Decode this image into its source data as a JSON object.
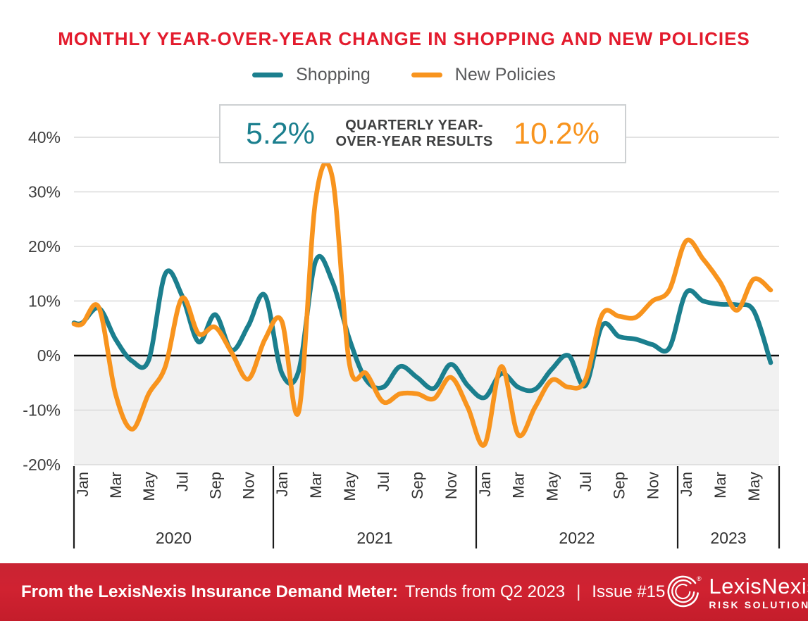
{
  "title": {
    "text": "MONTHLY YEAR-OVER-YEAR CHANGE IN SHOPPING AND NEW POLICIES"
  },
  "legend": {
    "items": [
      {
        "label": "Shopping",
        "color": "#1b7f8e"
      },
      {
        "label": "New Policies",
        "color": "#f8941e"
      }
    ]
  },
  "callout": {
    "shopping_value": "5.2%",
    "label_line1": "QUARTERLY YEAR-",
    "label_line2": "OVER-YEAR RESULTS",
    "new_policies_value": "10.2%"
  },
  "chart_data": {
    "type": "line",
    "title": "Monthly Year-Over-Year Change in Shopping and New Policies",
    "x_start": "Jan 2020",
    "x_end": "Jun 2023",
    "years": [
      "2020",
      "2021",
      "2022",
      "2023"
    ],
    "months_per_year": [
      12,
      12,
      12,
      6
    ],
    "month_tick_labels": [
      "Jan",
      "Mar",
      "May",
      "Jul",
      "Sep",
      "Nov"
    ],
    "y_ticks": [
      40,
      30,
      20,
      10,
      0,
      -10,
      -20
    ],
    "y_tick_suffix": "%",
    "ylim": [
      -20,
      40
    ],
    "grid": "horizontal",
    "negative_region_shaded": true,
    "legend_position": "top",
    "series": [
      {
        "name": "Shopping",
        "color": "#1b7f8e",
        "values": [
          6,
          8.7,
          3,
          -1,
          -0.8,
          15,
          11,
          2.5,
          7.5,
          1,
          5.5,
          11,
          -3.2,
          -2.8,
          17.3,
          13.5,
          3,
          -4.5,
          -5.8,
          -2,
          -4,
          -6,
          -1.6,
          -5.5,
          -7.7,
          -3.3,
          -5.8,
          -6.2,
          -2.5,
          0,
          -5.5,
          5.5,
          3.5,
          3,
          2,
          1.4,
          11.5,
          10,
          9.4,
          9.3,
          8.2,
          -1.3
        ]
      },
      {
        "name": "New Policies",
        "color": "#f8941e",
        "values": [
          5.8,
          8.8,
          -7,
          -13.5,
          -7,
          -2,
          10.5,
          4,
          5.2,
          0.5,
          -4.3,
          3,
          6.3,
          -10.3,
          28.5,
          32.5,
          -1.5,
          -3.3,
          -8.5,
          -7,
          -7,
          -7.9,
          -4,
          -9.5,
          -16.3,
          -2,
          -14.5,
          -9.5,
          -4.5,
          -5.8,
          -4.5,
          7.5,
          7.2,
          7,
          10,
          12,
          21,
          17.7,
          13.5,
          8.3,
          14,
          12
        ]
      }
    ],
    "quarterly_overlay": {
      "shopping": "5.2%",
      "new_policies": "10.2%",
      "period": "Q2 2023"
    }
  },
  "footer": {
    "text_bold": "From the LexisNexis Insurance Demand Meter:",
    "text_regular": "Trends from Q2 2023",
    "divider": "|",
    "issue": "Issue #15",
    "logo": {
      "brand": "LexisNexis",
      "registered": "®",
      "subbrand": "RISK SOLUTIONS"
    }
  }
}
